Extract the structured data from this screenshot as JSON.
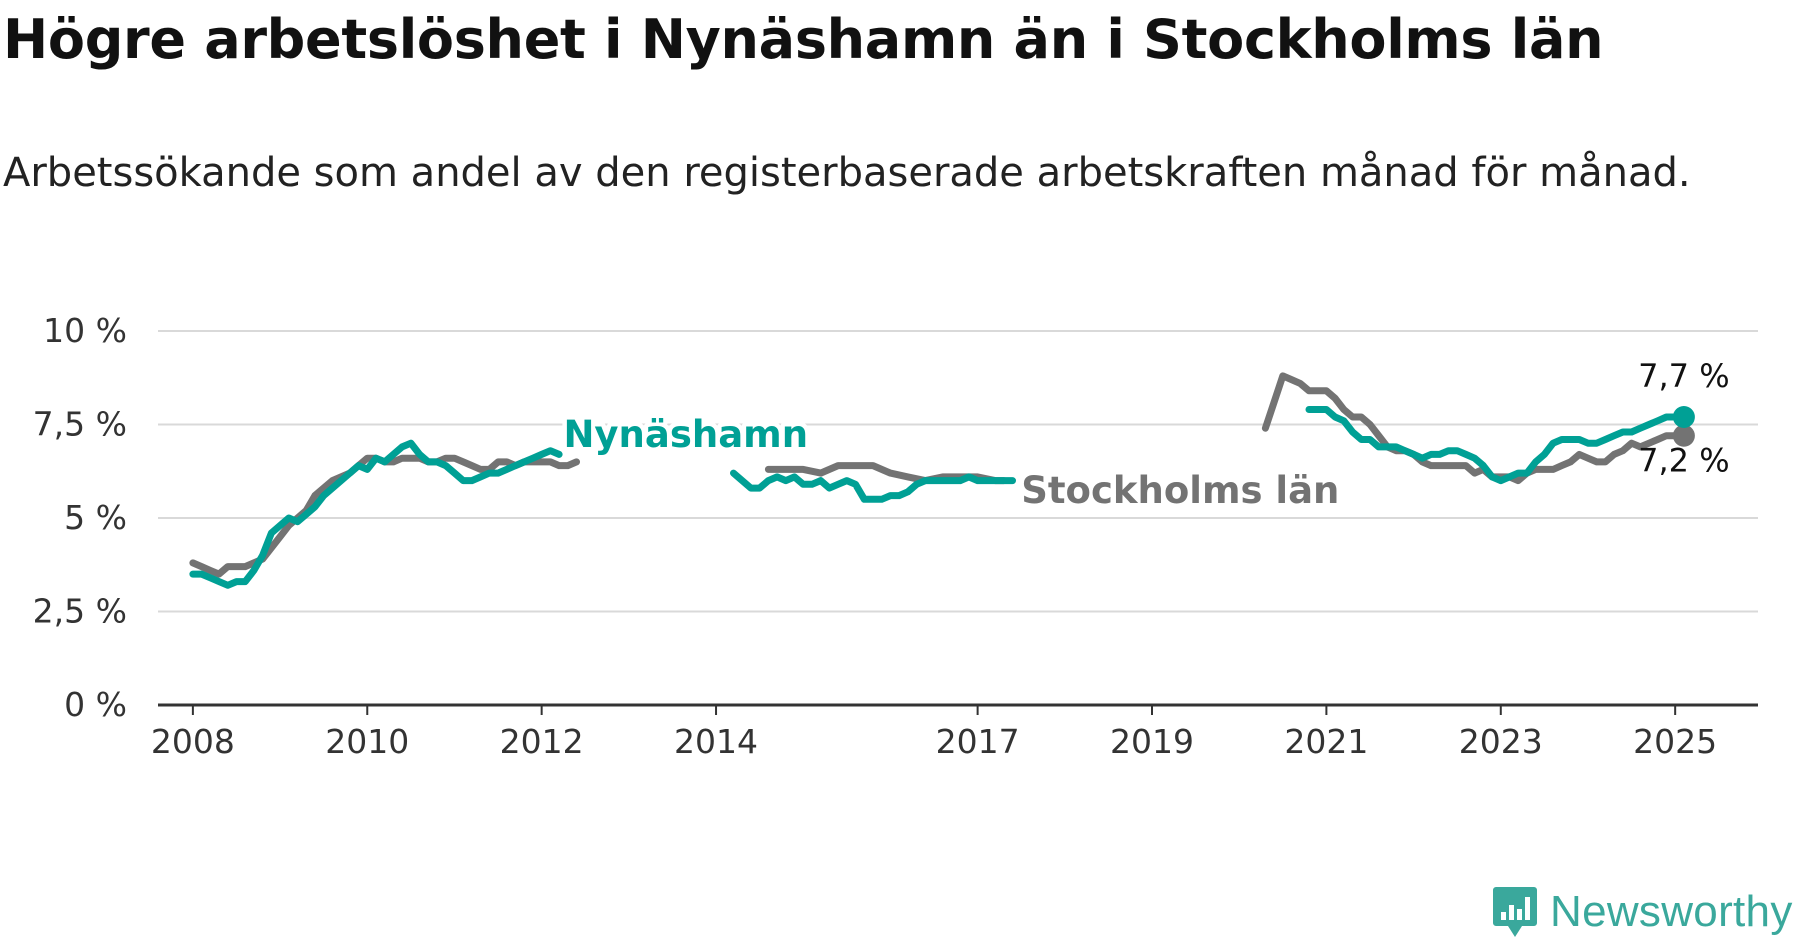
{
  "title": "Högre arbetslöshet i Nynäshamn än i Stockholms län",
  "subtitle": "Arbetssökande som andel av den registerbaserade arbetskraften månad för månad.",
  "brand": {
    "name": "Newsworthy",
    "icon": "newsworthy-chart-icon"
  },
  "colors": {
    "nynashamn": "#00a095",
    "stockholm": "#737373",
    "grid": "#d9d9d9",
    "axis": "#333333"
  },
  "chart_data": {
    "type": "line",
    "ylim": [
      0,
      10
    ],
    "xlim": [
      2007.6,
      2025.95
    ],
    "y_ticks": [
      {
        "value": 0,
        "label": "0 %"
      },
      {
        "value": 2.5,
        "label": "2,5 %"
      },
      {
        "value": 5,
        "label": "5 %"
      },
      {
        "value": 7.5,
        "label": "7,5 %"
      },
      {
        "value": 10,
        "label": "10 %"
      }
    ],
    "x_ticks": [
      {
        "value": 2008,
        "label": "2008"
      },
      {
        "value": 2010,
        "label": "2010"
      },
      {
        "value": 2012,
        "label": "2012"
      },
      {
        "value": 2014,
        "label": "2014"
      },
      {
        "value": 2017,
        "label": "2017"
      },
      {
        "value": 2019,
        "label": "2019"
      },
      {
        "value": 2021,
        "label": "2021"
      },
      {
        "value": 2023,
        "label": "2023"
      },
      {
        "value": 2025,
        "label": "2025"
      }
    ],
    "grid": true,
    "series": [
      {
        "name": "Stockholms län",
        "key": "stockholm",
        "end_label": "7,2 %",
        "segments": [
          {
            "x": [
              2008.0,
              2008.1,
              2008.2,
              2008.3,
              2008.4,
              2008.5,
              2008.6,
              2008.7,
              2008.8,
              2008.9,
              2009.0,
              2009.1,
              2009.2,
              2009.3,
              2009.4,
              2009.5,
              2009.6,
              2009.7,
              2009.8,
              2009.9,
              2010.0,
              2010.1,
              2010.2,
              2010.3,
              2010.4,
              2010.5,
              2010.6,
              2010.7,
              2010.8,
              2010.9,
              2011.0,
              2011.1,
              2011.2,
              2011.3,
              2011.4,
              2011.5,
              2011.6,
              2011.7,
              2011.8,
              2011.9,
              2012.0,
              2012.1,
              2012.2,
              2012.3,
              2012.4
            ],
            "y": [
              3.8,
              3.7,
              3.6,
              3.5,
              3.7,
              3.7,
              3.7,
              3.8,
              3.9,
              4.2,
              4.5,
              4.8,
              5.0,
              5.2,
              5.6,
              5.8,
              6.0,
              6.1,
              6.2,
              6.4,
              6.6,
              6.6,
              6.5,
              6.5,
              6.6,
              6.6,
              6.6,
              6.5,
              6.5,
              6.6,
              6.6,
              6.5,
              6.4,
              6.3,
              6.3,
              6.5,
              6.5,
              6.4,
              6.5,
              6.5,
              6.5,
              6.5,
              6.4,
              6.4,
              6.5
            ]
          },
          {
            "x": [
              2014.6,
              2014.8,
              2015.0,
              2015.2,
              2015.4,
              2015.6,
              2015.8,
              2016.0,
              2016.2,
              2016.4,
              2016.6,
              2016.8,
              2017.0,
              2017.2,
              2017.3
            ],
            "y": [
              6.3,
              6.3,
              6.3,
              6.2,
              6.4,
              6.4,
              6.4,
              6.2,
              6.1,
              6.0,
              6.1,
              6.1,
              6.1,
              6.0,
              6.0
            ]
          },
          {
            "x": [
              2020.3,
              2020.4,
              2020.5,
              2020.6,
              2020.7,
              2020.8,
              2020.9,
              2021.0,
              2021.1,
              2021.2,
              2021.3,
              2021.4,
              2021.5,
              2021.6,
              2021.7,
              2021.8,
              2021.9,
              2022.0,
              2022.1,
              2022.2,
              2022.3,
              2022.4,
              2022.5,
              2022.6,
              2022.7,
              2022.8,
              2022.9,
              2023.0,
              2023.1,
              2023.2,
              2023.3,
              2023.4,
              2023.5,
              2023.6,
              2023.7,
              2023.8,
              2023.9,
              2024.0,
              2024.1,
              2024.2,
              2024.3,
              2024.4,
              2024.5,
              2024.6,
              2024.7,
              2024.8,
              2024.9,
              2025.0,
              2025.1
            ],
            "y": [
              7.4,
              8.1,
              8.8,
              8.7,
              8.6,
              8.4,
              8.4,
              8.4,
              8.2,
              7.9,
              7.7,
              7.7,
              7.5,
              7.2,
              6.9,
              6.8,
              6.8,
              6.7,
              6.5,
              6.4,
              6.4,
              6.4,
              6.4,
              6.4,
              6.2,
              6.3,
              6.1,
              6.1,
              6.1,
              6.0,
              6.2,
              6.3,
              6.3,
              6.3,
              6.4,
              6.5,
              6.7,
              6.6,
              6.5,
              6.5,
              6.7,
              6.8,
              7.0,
              6.9,
              7.0,
              7.1,
              7.2,
              7.2,
              7.2
            ]
          }
        ]
      },
      {
        "name": "Nynäshamn",
        "key": "nynashamn",
        "end_label": "7,7 %",
        "segments": [
          {
            "x": [
              2008.0,
              2008.1,
              2008.2,
              2008.3,
              2008.4,
              2008.5,
              2008.6,
              2008.7,
              2008.8,
              2008.9,
              2009.0,
              2009.1,
              2009.2,
              2009.3,
              2009.4,
              2009.5,
              2009.6,
              2009.7,
              2009.8,
              2009.9,
              2010.0,
              2010.1,
              2010.2,
              2010.3,
              2010.4,
              2010.5,
              2010.6,
              2010.7,
              2010.8,
              2010.9,
              2011.0,
              2011.1,
              2011.2,
              2011.3,
              2011.4,
              2011.5,
              2011.6,
              2011.7,
              2011.8,
              2011.9,
              2012.0,
              2012.1,
              2012.2
            ],
            "y": [
              3.5,
              3.5,
              3.4,
              3.3,
              3.2,
              3.3,
              3.3,
              3.6,
              4.0,
              4.6,
              4.8,
              5.0,
              4.9,
              5.1,
              5.3,
              5.6,
              5.8,
              6.0,
              6.2,
              6.4,
              6.3,
              6.6,
              6.5,
              6.7,
              6.9,
              7.0,
              6.7,
              6.5,
              6.5,
              6.4,
              6.2,
              6.0,
              6.0,
              6.1,
              6.2,
              6.2,
              6.3,
              6.4,
              6.5,
              6.6,
              6.7,
              6.8,
              6.7
            ]
          },
          {
            "x": [
              2014.2,
              2014.3,
              2014.4,
              2014.5,
              2014.6,
              2014.7,
              2014.8,
              2014.9,
              2015.0,
              2015.1,
              2015.2,
              2015.3,
              2015.4,
              2015.5,
              2015.6,
              2015.7,
              2015.8,
              2015.9,
              2016.0,
              2016.1,
              2016.2,
              2016.3,
              2016.4,
              2016.5,
              2016.6,
              2016.7,
              2016.8,
              2016.9,
              2017.0,
              2017.1,
              2017.2,
              2017.3,
              2017.4
            ],
            "y": [
              6.2,
              6.0,
              5.8,
              5.8,
              6.0,
              6.1,
              6.0,
              6.1,
              5.9,
              5.9,
              6.0,
              5.8,
              5.9,
              6.0,
              5.9,
              5.5,
              5.5,
              5.5,
              5.6,
              5.6,
              5.7,
              5.9,
              6.0,
              6.0,
              6.0,
              6.0,
              6.0,
              6.1,
              6.0,
              6.0,
              6.0,
              6.0,
              6.0
            ]
          },
          {
            "x": [
              2020.8,
              2020.9,
              2021.0,
              2021.1,
              2021.2,
              2021.3,
              2021.4,
              2021.5,
              2021.6,
              2021.7,
              2021.8,
              2021.9,
              2022.0,
              2022.1,
              2022.2,
              2022.3,
              2022.4,
              2022.5,
              2022.6,
              2022.7,
              2022.8,
              2022.9,
              2023.0,
              2023.1,
              2023.2,
              2023.3,
              2023.4,
              2023.5,
              2023.6,
              2023.7,
              2023.8,
              2023.9,
              2024.0,
              2024.1,
              2024.2,
              2024.3,
              2024.4,
              2024.5,
              2024.6,
              2024.7,
              2024.8,
              2024.9,
              2025.0,
              2025.1
            ],
            "y": [
              7.9,
              7.9,
              7.9,
              7.7,
              7.6,
              7.3,
              7.1,
              7.1,
              6.9,
              6.9,
              6.9,
              6.8,
              6.7,
              6.6,
              6.7,
              6.7,
              6.8,
              6.8,
              6.7,
              6.6,
              6.4,
              6.1,
              6.0,
              6.1,
              6.2,
              6.2,
              6.5,
              6.7,
              7.0,
              7.1,
              7.1,
              7.1,
              7.0,
              7.0,
              7.1,
              7.2,
              7.3,
              7.3,
              7.4,
              7.5,
              7.6,
              7.7,
              7.7,
              7.7
            ]
          }
        ]
      }
    ]
  }
}
